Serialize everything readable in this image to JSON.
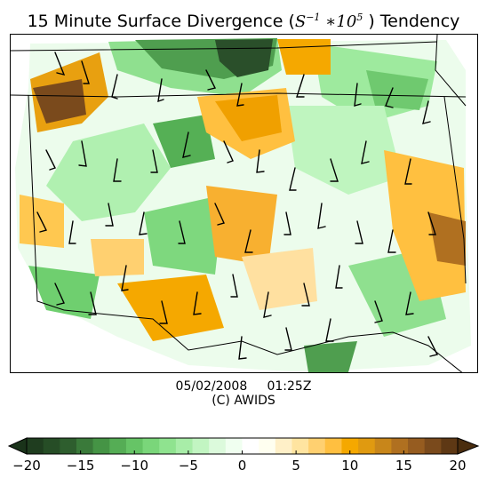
{
  "title": {
    "prefix": "15 Minute Surface Divergence (",
    "math_base": "S",
    "math_exp": "−1",
    "math_mid": " ∗10",
    "math_exp2": "5",
    "suffix": " ) Tendency"
  },
  "caption": {
    "datetime": "05/02/2008     01:25Z",
    "copyright": "(C) AWIDS"
  },
  "colorbar": {
    "min": -20,
    "max": 20,
    "tick_labels": [
      "−20",
      "−15",
      "−10",
      "−5",
      "0",
      "5",
      "10",
      "15",
      "20"
    ],
    "tick_values": [
      -20,
      -15,
      -10,
      -5,
      0,
      5,
      10,
      15,
      20
    ],
    "extend": "both",
    "colors": [
      "#1f3d1f",
      "#264d26",
      "#2e5e2e",
      "#3a7a3a",
      "#459445",
      "#55ad55",
      "#66c466",
      "#7ad67a",
      "#8fe38f",
      "#a8eda8",
      "#c2f5c2",
      "#dcfadc",
      "#f0fff0",
      "#ffffff",
      "#fffff0",
      "#fff0c8",
      "#ffe4a0",
      "#ffd070",
      "#ffbf40",
      "#f5a800",
      "#e09a10",
      "#c8861a",
      "#b07020",
      "#965c20",
      "#7a4a1c",
      "#5e3814"
    ],
    "under_color": "#1a331a",
    "over_color": "#4a2d0e"
  },
  "map": {
    "negative_color": "#7bdc7b",
    "positive_color": "#ffb22c"
  }
}
